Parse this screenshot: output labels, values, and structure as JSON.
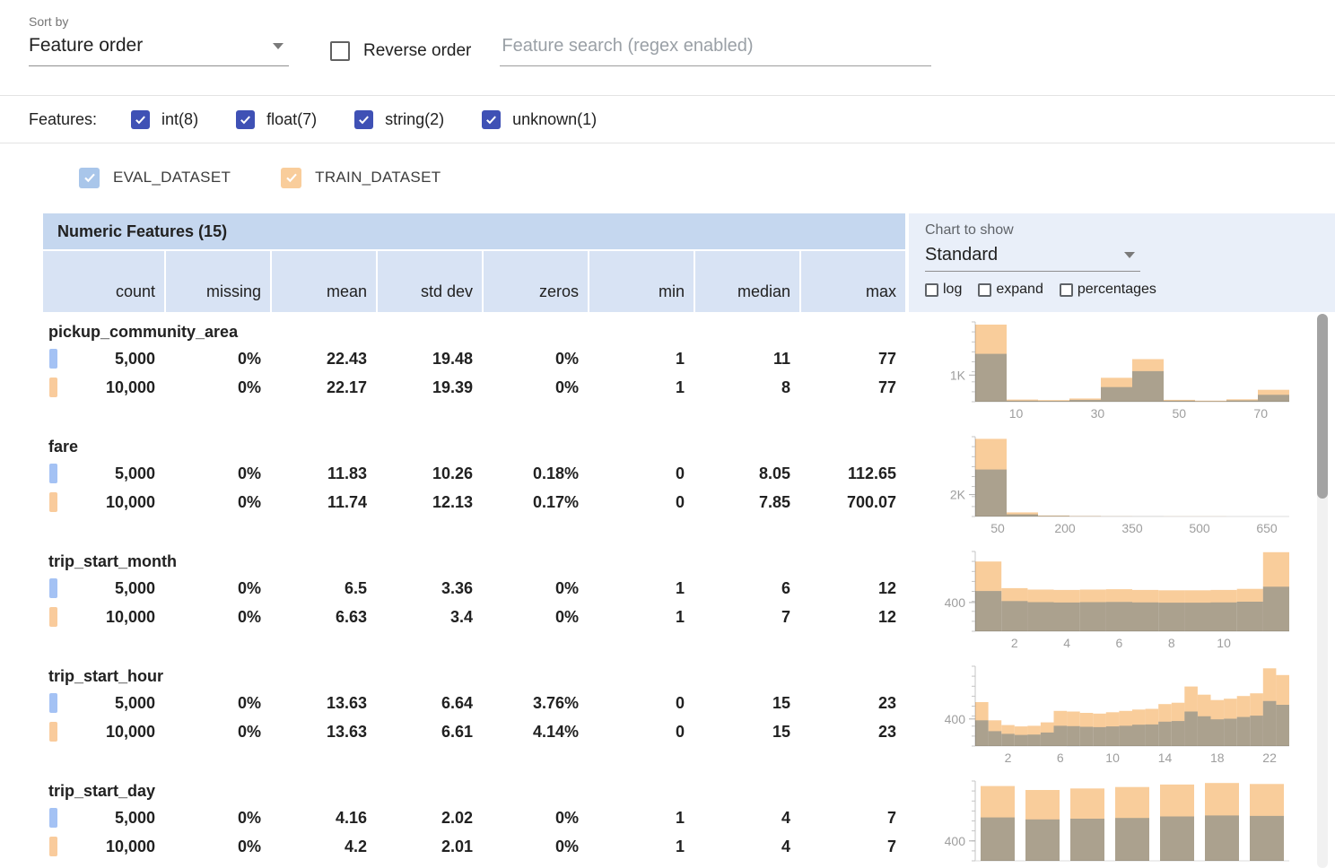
{
  "toolbar": {
    "sort_by_label": "Sort by",
    "sort_by_value": "Feature order",
    "reverse_order_label": "Reverse order",
    "search_placeholder": "Feature search (regex enabled)"
  },
  "features_filter": {
    "label": "Features:",
    "items": [
      {
        "label": "int(8)",
        "checked": true
      },
      {
        "label": "float(7)",
        "checked": true
      },
      {
        "label": "string(2)",
        "checked": true
      },
      {
        "label": "unknown(1)",
        "checked": true
      }
    ]
  },
  "dataset_legend": [
    {
      "label": "EVAL_DATASET",
      "color": "#a9c6ea",
      "checked": true
    },
    {
      "label": "TRAIN_DATASET",
      "color": "#f9cd9b",
      "checked": true
    }
  ],
  "table": {
    "title": "Numeric Features (15)",
    "columns": [
      "count",
      "missing",
      "mean",
      "std dev",
      "zeros",
      "min",
      "median",
      "max"
    ],
    "chart_controls": {
      "label": "Chart to show",
      "selected": "Standard",
      "options": [
        {
          "label": "log",
          "checked": false
        },
        {
          "label": "expand",
          "checked": false
        },
        {
          "label": "percentages",
          "checked": false
        }
      ]
    },
    "features": [
      {
        "name": "pickup_community_area",
        "rows": [
          {
            "dataset": "EVAL_DATASET",
            "swatch": "#a4c2f4",
            "values": [
              "5,000",
              "0%",
              "22.43",
              "19.48",
              "0%",
              "1",
              "11",
              "77"
            ]
          },
          {
            "dataset": "TRAIN_DATASET",
            "swatch": "#f9cb9c",
            "values": [
              "10,000",
              "0%",
              "22.17",
              "19.39",
              "0%",
              "1",
              "8",
              "77"
            ]
          }
        ]
      },
      {
        "name": "fare",
        "rows": [
          {
            "dataset": "EVAL_DATASET",
            "swatch": "#a4c2f4",
            "values": [
              "5,000",
              "0%",
              "11.83",
              "10.26",
              "0.18%",
              "0",
              "8.05",
              "112.65"
            ]
          },
          {
            "dataset": "TRAIN_DATASET",
            "swatch": "#f9cb9c",
            "values": [
              "10,000",
              "0%",
              "11.74",
              "12.13",
              "0.17%",
              "0",
              "7.85",
              "700.07"
            ]
          }
        ]
      },
      {
        "name": "trip_start_month",
        "rows": [
          {
            "dataset": "EVAL_DATASET",
            "swatch": "#a4c2f4",
            "values": [
              "5,000",
              "0%",
              "6.5",
              "3.36",
              "0%",
              "1",
              "6",
              "12"
            ]
          },
          {
            "dataset": "TRAIN_DATASET",
            "swatch": "#f9cb9c",
            "values": [
              "10,000",
              "0%",
              "6.63",
              "3.4",
              "0%",
              "1",
              "7",
              "12"
            ]
          }
        ]
      },
      {
        "name": "trip_start_hour",
        "rows": [
          {
            "dataset": "EVAL_DATASET",
            "swatch": "#a4c2f4",
            "values": [
              "5,000",
              "0%",
              "13.63",
              "6.64",
              "3.76%",
              "0",
              "15",
              "23"
            ]
          },
          {
            "dataset": "TRAIN_DATASET",
            "swatch": "#f9cb9c",
            "values": [
              "10,000",
              "0%",
              "13.63",
              "6.61",
              "4.14%",
              "0",
              "15",
              "23"
            ]
          }
        ]
      },
      {
        "name": "trip_start_day",
        "rows": [
          {
            "dataset": "EVAL_DATASET",
            "swatch": "#a4c2f4",
            "values": [
              "5,000",
              "0%",
              "4.16",
              "2.02",
              "0%",
              "1",
              "4",
              "7"
            ]
          },
          {
            "dataset": "TRAIN_DATASET",
            "swatch": "#f9cb9c",
            "values": [
              "10,000",
              "0%",
              "4.2",
              "2.01",
              "0%",
              "1",
              "4",
              "7"
            ]
          }
        ]
      }
    ]
  },
  "chart_data": [
    {
      "type": "bar",
      "subtype": "overlaid-histogram",
      "feature": "pickup_community_area",
      "x_domain": [
        0,
        77
      ],
      "x_ticks": [
        10,
        30,
        50,
        70
      ],
      "y_max": 3000,
      "y_tick": {
        "value": 1000,
        "label": "1K"
      },
      "bar_gap": 0,
      "series": [
        {
          "name": "TRAIN_DATASET",
          "color": "#f9cd9b",
          "values": [
            2900,
            80,
            60,
            120,
            900,
            1600,
            70,
            40,
            90,
            450
          ]
        },
        {
          "name": "EVAL_DATASET",
          "color": "#afc9e9",
          "values": [
            1800,
            40,
            30,
            70,
            550,
            1150,
            40,
            20,
            50,
            260
          ]
        }
      ]
    },
    {
      "type": "bar",
      "subtype": "overlaid-histogram",
      "feature": "fare",
      "x_domain": [
        0,
        700
      ],
      "x_ticks": [
        50,
        200,
        350,
        500,
        650
      ],
      "y_max": 7300,
      "y_tick": {
        "value": 2000,
        "label": "2K"
      },
      "bar_gap": 0,
      "series": [
        {
          "name": "TRAIN_DATASET",
          "color": "#f9cd9b",
          "values": [
            7100,
            380,
            90,
            40,
            20,
            12,
            8,
            5,
            3,
            2
          ]
        },
        {
          "name": "EVAL_DATASET",
          "color": "#afc9e9",
          "values": [
            4300,
            200,
            50,
            20,
            10,
            6,
            4,
            2,
            1,
            1
          ]
        }
      ]
    },
    {
      "type": "bar",
      "subtype": "overlaid-histogram",
      "feature": "trip_start_month",
      "x_domain": [
        0.5,
        12.5
      ],
      "x_ticks": [
        2,
        4,
        6,
        8,
        10
      ],
      "y_max": 1110,
      "y_tick": {
        "value": 400,
        "label": "400"
      },
      "bar_gap": 0,
      "series": [
        {
          "name": "TRAIN_DATASET",
          "color": "#f9cd9b",
          "values": [
            970,
            600,
            580,
            575,
            580,
            585,
            575,
            570,
            570,
            575,
            590,
            1100
          ]
        },
        {
          "name": "EVAL_DATASET",
          "color": "#afc9e9",
          "values": [
            560,
            420,
            405,
            400,
            405,
            408,
            402,
            398,
            398,
            402,
            412,
            620
          ]
        }
      ]
    },
    {
      "type": "bar",
      "subtype": "overlaid-histogram",
      "feature": "trip_start_hour",
      "x_domain": [
        -0.5,
        23.5
      ],
      "x_ticks": [
        2,
        6,
        10,
        14,
        18,
        22
      ],
      "y_max": 1180,
      "y_tick": {
        "value": 400,
        "label": "400"
      },
      "bar_gap": 0,
      "series": [
        {
          "name": "TRAIN_DATASET",
          "color": "#f9cd9b",
          "values": [
            650,
            380,
            310,
            290,
            300,
            350,
            520,
            510,
            490,
            480,
            500,
            520,
            540,
            550,
            620,
            640,
            880,
            760,
            680,
            700,
            740,
            780,
            1150,
            1050
          ]
        },
        {
          "name": "EVAL_DATASET",
          "color": "#afc9e9",
          "values": [
            380,
            220,
            180,
            165,
            170,
            200,
            300,
            295,
            285,
            280,
            290,
            300,
            315,
            320,
            360,
            370,
            510,
            440,
            395,
            405,
            430,
            450,
            665,
            610
          ]
        }
      ]
    },
    {
      "type": "bar",
      "subtype": "overlaid-histogram",
      "feature": "trip_start_day",
      "x_domain": [
        0.5,
        7.5
      ],
      "x_ticks": [],
      "y_max": 1600,
      "y_tick": {
        "value": 400,
        "label": "400"
      },
      "bar_gap": 0.24,
      "series": [
        {
          "name": "TRAIN_DATASET",
          "color": "#f9cd9b",
          "values": [
            1500,
            1420,
            1450,
            1480,
            1530,
            1560,
            1540
          ]
        },
        {
          "name": "EVAL_DATASET",
          "color": "#afc9e9",
          "values": [
            870,
            830,
            845,
            860,
            890,
            910,
            900
          ]
        }
      ]
    }
  ],
  "colors": {
    "checkbox_accent": "#3f51b5",
    "eval_dataset": "#a9c6ea",
    "train_dataset": "#f9cd9b",
    "table_title_bg": "#c5d7ef",
    "table_header_bg": "#d8e3f4",
    "chart_panel_bg": "#e9eff9"
  }
}
